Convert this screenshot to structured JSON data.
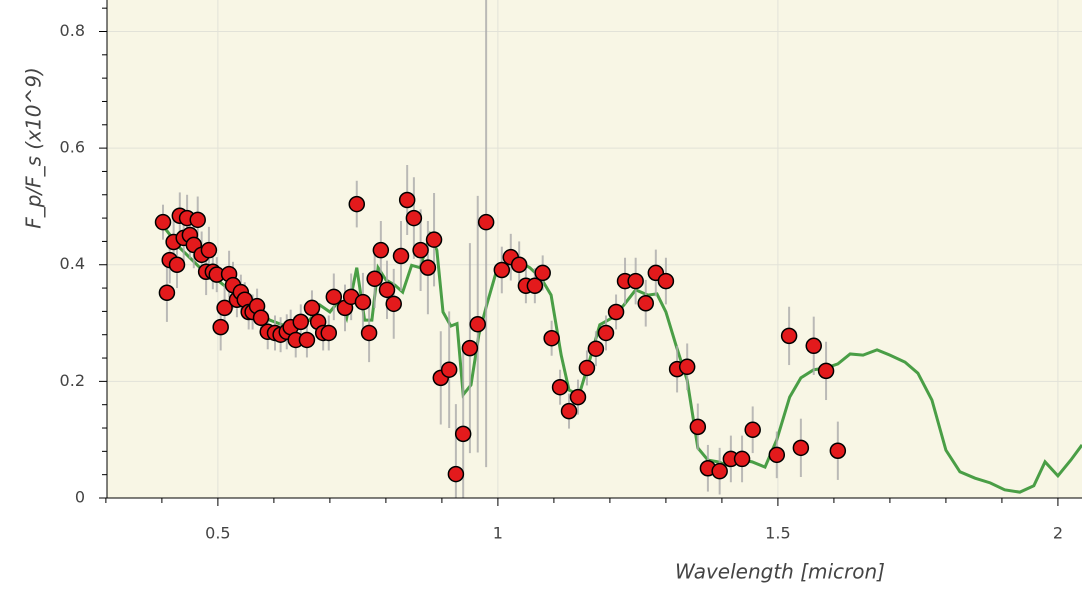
{
  "chart_data": {
    "type": "scatter",
    "xlabel": "Wavelength [micron]",
    "ylabel": "F_p/F_s (x10^9)",
    "xlim": [
      0.302,
      2.043
    ],
    "ylim": [
      0,
      0.854
    ],
    "xticks": [
      0.5,
      1,
      1.5,
      2
    ],
    "yticks": [
      0,
      0.2,
      0.4,
      0.6,
      0.8
    ],
    "xminorticks": [
      0.3,
      0.4,
      0.6,
      0.7,
      0.8,
      0.9,
      1.1,
      1.2,
      1.3,
      1.4,
      1.6,
      1.7,
      1.8,
      1.9
    ],
    "yminorticks": [
      0.04,
      0.08,
      0.12,
      0.16,
      0.24,
      0.28,
      0.32,
      0.36,
      0.44,
      0.48,
      0.52,
      0.56,
      0.64,
      0.68,
      0.72,
      0.76,
      0.84
    ],
    "grid": true,
    "color": "#e31a1c",
    "error_color": "#aaaaaa",
    "x": [
      0.402,
      0.409,
      0.414,
      0.421,
      0.427,
      0.432,
      0.439,
      0.445,
      0.45,
      0.457,
      0.464,
      0.471,
      0.479,
      0.484,
      0.491,
      0.498,
      0.505,
      0.512,
      0.52,
      0.527,
      0.534,
      0.541,
      0.548,
      0.555,
      0.562,
      0.57,
      0.577,
      0.589,
      0.602,
      0.612,
      0.623,
      0.63,
      0.639,
      0.648,
      0.659,
      0.668,
      0.679,
      0.688,
      0.698,
      0.707,
      0.727,
      0.738,
      0.748,
      0.759,
      0.77,
      0.78,
      0.791,
      0.802,
      0.814,
      0.827,
      0.838,
      0.85,
      0.862,
      0.875,
      0.886,
      0.898,
      0.913,
      0.925,
      0.938,
      0.95,
      0.964,
      0.979,
      1.007,
      1.023,
      1.038,
      1.05,
      1.066,
      1.08,
      1.096,
      1.111,
      1.127,
      1.143,
      1.159,
      1.175,
      1.193,
      1.211,
      1.227,
      1.246,
      1.264,
      1.282,
      1.3,
      1.32,
      1.338,
      1.357,
      1.375,
      1.396,
      1.416,
      1.436,
      1.455,
      1.498,
      1.52,
      1.541,
      1.564,
      1.586,
      1.607
    ],
    "values": [
      0.473,
      0.352,
      0.408,
      0.439,
      0.4,
      0.484,
      0.446,
      0.48,
      0.451,
      0.434,
      0.477,
      0.417,
      0.388,
      0.425,
      0.388,
      0.383,
      0.293,
      0.326,
      0.384,
      0.365,
      0.34,
      0.353,
      0.34,
      0.319,
      0.319,
      0.329,
      0.309,
      0.285,
      0.283,
      0.28,
      0.285,
      0.293,
      0.271,
      0.302,
      0.271,
      0.326,
      0.302,
      0.283,
      0.283,
      0.345,
      0.326,
      0.345,
      0.504,
      0.336,
      0.283,
      0.376,
      0.425,
      0.357,
      0.333,
      0.415,
      0.511,
      0.48,
      0.425,
      0.395,
      0.443,
      0.206,
      0.22,
      0.041,
      0.11,
      0.257,
      0.298,
      0.473,
      0.391,
      0.413,
      0.4,
      0.364,
      0.364,
      0.386,
      0.274,
      0.19,
      0.149,
      0.173,
      0.223,
      0.256,
      0.283,
      0.319,
      0.372,
      0.372,
      0.334,
      0.386,
      0.372,
      0.221,
      0.225,
      0.122,
      0.051,
      0.046,
      0.067,
      0.067,
      0.117,
      0.074,
      0.278,
      0.086,
      0.261,
      0.218,
      0.081
    ],
    "errors": [
      0.03,
      0.05,
      0.04,
      0.04,
      0.04,
      0.04,
      0.04,
      0.04,
      0.04,
      0.04,
      0.04,
      0.04,
      0.04,
      0.04,
      0.03,
      0.03,
      0.04,
      0.04,
      0.04,
      0.04,
      0.03,
      0.03,
      0.03,
      0.03,
      0.03,
      0.03,
      0.03,
      0.03,
      0.03,
      0.03,
      0.03,
      0.03,
      0.03,
      0.03,
      0.03,
      0.03,
      0.03,
      0.03,
      0.03,
      0.04,
      0.04,
      0.04,
      0.04,
      0.05,
      0.05,
      0.05,
      0.05,
      0.05,
      0.06,
      0.06,
      0.06,
      0.07,
      0.07,
      0.08,
      0.08,
      0.08,
      0.1,
      0.12,
      0.15,
      0.18,
      0.22,
      0.42,
      0.04,
      0.04,
      0.04,
      0.03,
      0.03,
      0.03,
      0.03,
      0.03,
      0.03,
      0.03,
      0.03,
      0.03,
      0.03,
      0.03,
      0.04,
      0.04,
      0.04,
      0.04,
      0.04,
      0.04,
      0.04,
      0.04,
      0.04,
      0.04,
      0.04,
      0.04,
      0.04,
      0.04,
      0.05,
      0.05,
      0.05,
      0.05,
      0.05
    ],
    "model": {
      "color": "#4a9e46",
      "x": [
        0.402,
        0.432,
        0.468,
        0.495,
        0.521,
        0.557,
        0.593,
        0.629,
        0.664,
        0.682,
        0.7,
        0.718,
        0.73,
        0.748,
        0.762,
        0.775,
        0.786,
        0.8,
        0.816,
        0.83,
        0.846,
        0.861,
        0.879,
        0.891,
        0.902,
        0.916,
        0.927,
        0.938,
        0.952,
        0.966,
        0.98,
        0.998,
        1.021,
        1.039,
        1.057,
        1.077,
        1.095,
        1.113,
        1.127,
        1.145,
        1.164,
        1.182,
        1.204,
        1.225,
        1.246,
        1.268,
        1.284,
        1.3,
        1.318,
        1.338,
        1.357,
        1.375,
        1.393,
        1.414,
        1.436,
        1.454,
        1.477,
        1.498,
        1.521,
        1.541,
        1.564,
        1.586,
        1.607,
        1.629,
        1.652,
        1.677,
        1.7,
        1.727,
        1.75,
        1.775,
        1.8,
        1.825,
        1.852,
        1.879,
        1.905,
        1.932,
        1.957,
        1.977,
        2.0,
        2.023,
        2.043
      ],
      "values": [
        0.467,
        0.429,
        0.395,
        0.377,
        0.357,
        0.331,
        0.305,
        0.292,
        0.305,
        0.331,
        0.319,
        0.34,
        0.309,
        0.395,
        0.305,
        0.305,
        0.395,
        0.374,
        0.365,
        0.353,
        0.399,
        0.395,
        0.451,
        0.425,
        0.319,
        0.295,
        0.299,
        0.177,
        0.194,
        0.28,
        0.331,
        0.391,
        0.405,
        0.405,
        0.395,
        0.377,
        0.348,
        0.245,
        0.185,
        0.177,
        0.237,
        0.297,
        0.309,
        0.331,
        0.357,
        0.348,
        0.35,
        0.319,
        0.262,
        0.202,
        0.086,
        0.065,
        0.062,
        0.055,
        0.065,
        0.062,
        0.053,
        0.1,
        0.173,
        0.206,
        0.22,
        0.223,
        0.23,
        0.247,
        0.245,
        0.254,
        0.245,
        0.233,
        0.214,
        0.168,
        0.082,
        0.045,
        0.034,
        0.026,
        0.014,
        0.01,
        0.021,
        0.062,
        0.038,
        0.065,
        0.091
      ]
    }
  }
}
